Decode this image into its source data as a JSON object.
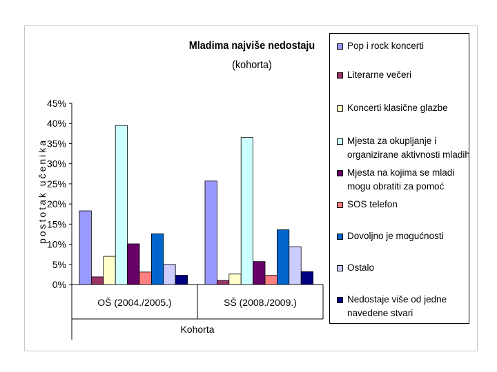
{
  "chart_data": {
    "type": "bar",
    "title": "Mladima najviše nedostaju",
    "subtitle": "(kohorta)",
    "xlabel": "Kohorta",
    "ylabel": "postotak učenika",
    "ylim": [
      0,
      45
    ],
    "yticks": [
      "0%",
      "5%",
      "10%",
      "15%",
      "20%",
      "25%",
      "30%",
      "35%",
      "40%",
      "45%"
    ],
    "grid": false,
    "legend_position": "right",
    "categories": [
      "OŠ (2004./2005.)",
      "SŠ (2008./2009.)"
    ],
    "series": [
      {
        "name": "Pop i rock koncerti",
        "color": "#9999FF",
        "values": [
          18.3,
          25.7
        ]
      },
      {
        "name": "Literarne večeri",
        "color": "#993366",
        "values": [
          1.9,
          1.0
        ]
      },
      {
        "name": "Koncerti klasične glazbe",
        "color": "#FFFFCC",
        "values": [
          7.0,
          2.6
        ]
      },
      {
        "name": "Mjesta za okupljanje i organizirane aktivnosti mladih",
        "color": "#CCFFFF",
        "values": [
          39.5,
          36.5
        ]
      },
      {
        "name": "Mjesta na kojima se mladi mogu obratiti za pomoć",
        "color": "#660066",
        "values": [
          10.1,
          5.7
        ]
      },
      {
        "name": "SOS telefon",
        "color": "#FF8080",
        "values": [
          3.1,
          2.3
        ]
      },
      {
        "name": "Dovoljno je mogućnosti",
        "color": "#0066CC",
        "values": [
          12.6,
          13.6
        ]
      },
      {
        "name": "Ostalo",
        "color": "#CCCCFF",
        "values": [
          5.0,
          9.4
        ]
      },
      {
        "name": "Nedostaje više od jedne navedene stvari",
        "color": "#000080",
        "values": [
          2.3,
          3.2
        ]
      }
    ]
  }
}
